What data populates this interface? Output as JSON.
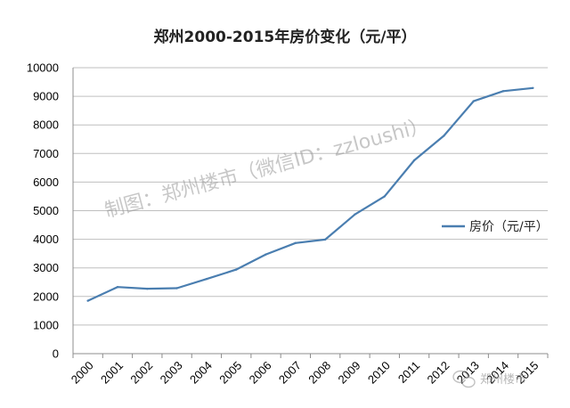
{
  "chart_data": {
    "type": "line",
    "title": "郑州2000-2015年房价变化（元/平）",
    "xlabel": "",
    "ylabel": "",
    "categories": [
      "2000",
      "2001",
      "2002",
      "2003",
      "2004",
      "2005",
      "2006",
      "2007",
      "2008",
      "2009",
      "2010",
      "2011",
      "2012",
      "2013",
      "2014",
      "2015"
    ],
    "series": [
      {
        "name": "房价（元/平）",
        "color": "#4a7eb0",
        "values": [
          1850,
          2330,
          2270,
          2290,
          2610,
          2940,
          3470,
          3870,
          3990,
          4870,
          5500,
          6760,
          7620,
          8830,
          9180,
          9290
        ]
      }
    ],
    "ylim": [
      0,
      10000
    ],
    "yticks": [
      0,
      1000,
      2000,
      3000,
      4000,
      5000,
      6000,
      7000,
      8000,
      9000,
      10000
    ],
    "grid": true,
    "legend_position": "right"
  },
  "watermark": {
    "text": "制图：郑州楼市（微信ID：zzloushi）",
    "corner_text": "郑州楼市",
    "corner_icon": "wechat-icon"
  }
}
